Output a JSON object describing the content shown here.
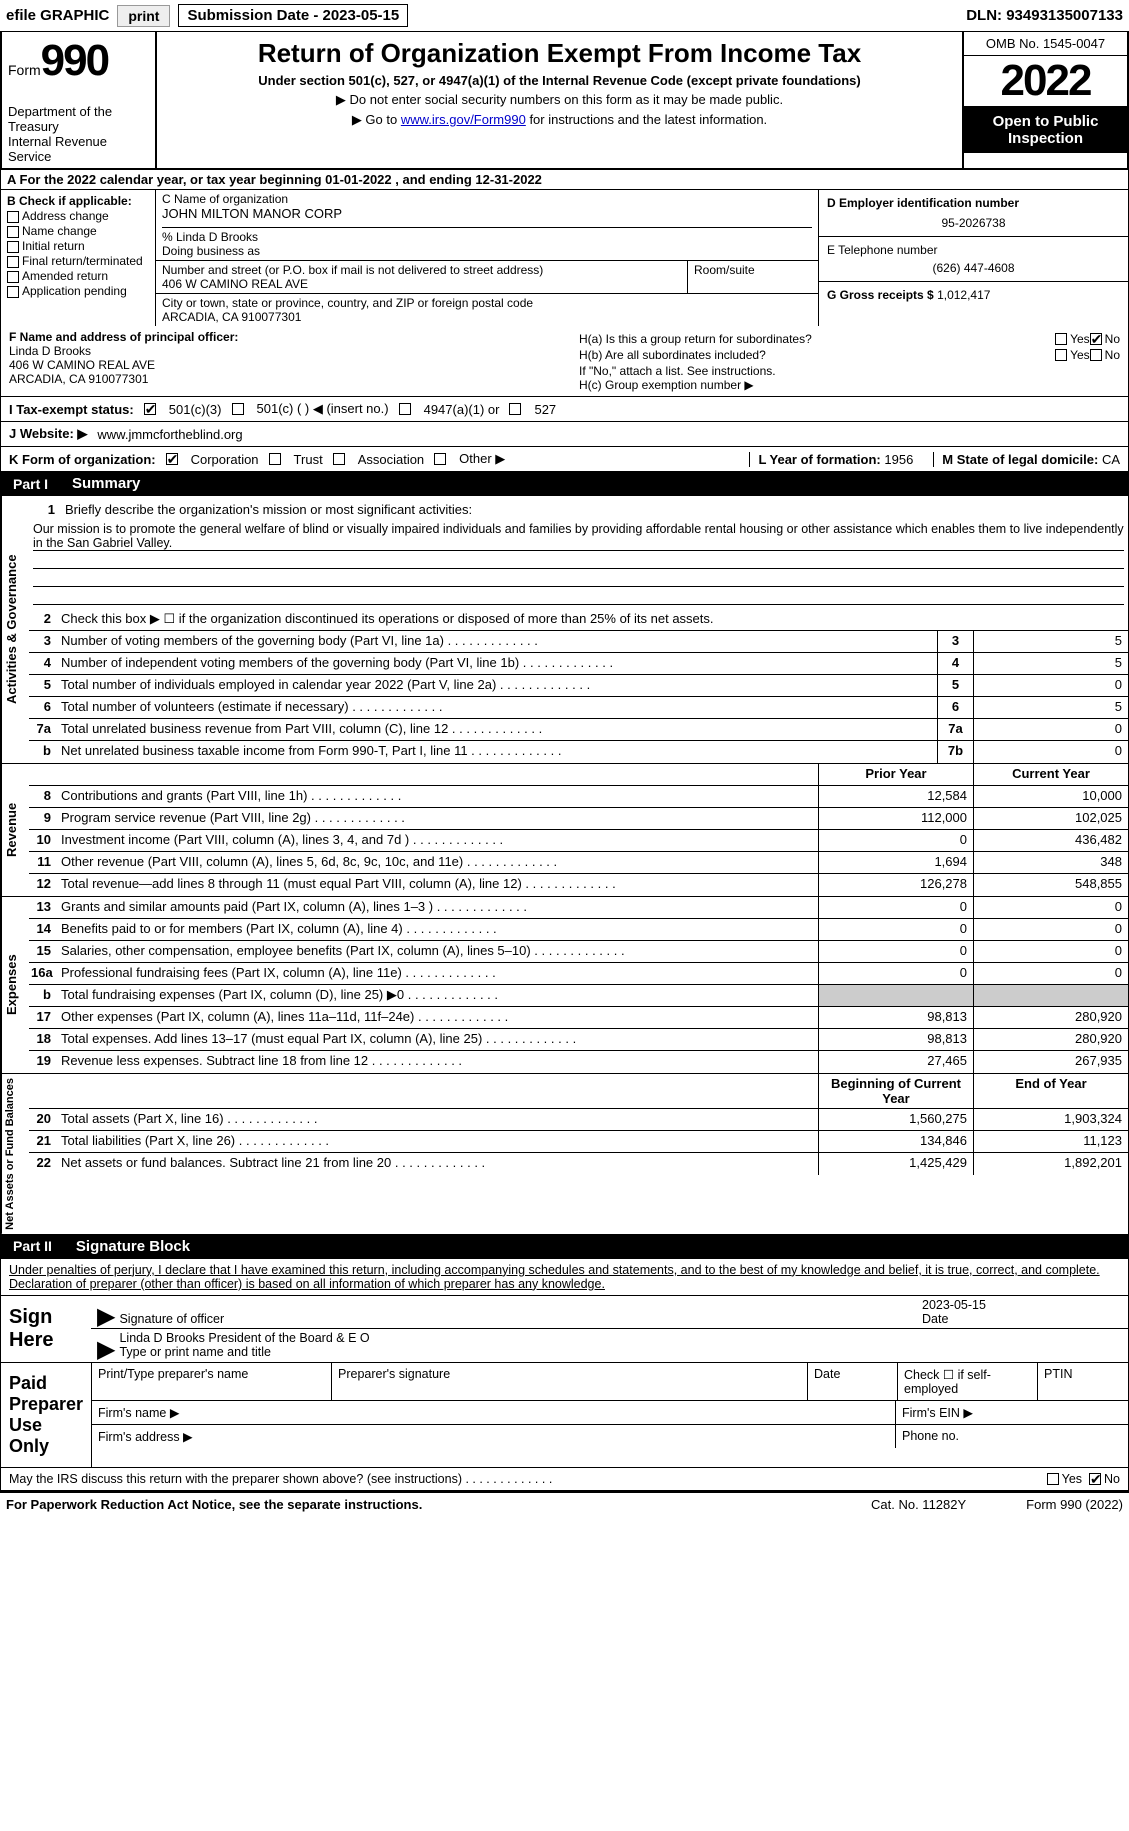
{
  "topbar": {
    "efile_label": "efile GRAPHIC",
    "print_btn": "print",
    "submission_label": "Submission Date - 2023-05-15",
    "dln": "DLN: 93493135007133"
  },
  "header": {
    "form_word": "Form",
    "form_number": "990",
    "dept": "Department of the Treasury",
    "irs": "Internal Revenue Service",
    "title": "Return of Organization Exempt From Income Tax",
    "subtitle": "Under section 501(c), 527, or 4947(a)(1) of the Internal Revenue Code (except private foundations)",
    "note1": "▶ Do not enter social security numbers on this form as it may be made public.",
    "note2_pre": "▶ Go to ",
    "note2_link": "www.irs.gov/Form990",
    "note2_post": " for instructions and the latest information.",
    "omb": "OMB No. 1545-0047",
    "year": "2022",
    "open": "Open to Public Inspection"
  },
  "section_a": "A For the 2022 calendar year, or tax year beginning 01-01-2022   , and ending 12-31-2022",
  "box_b": {
    "title": "B Check if applicable:",
    "items": [
      "Address change",
      "Name change",
      "Initial return",
      "Final return/terminated",
      "Amended return",
      "Application pending"
    ]
  },
  "box_c": {
    "name_label": "C Name of organization",
    "name": "JOHN MILTON MANOR CORP",
    "care_of": "% Linda D Brooks",
    "dba_label": "Doing business as",
    "addr_label": "Number and street (or P.O. box if mail is not delivered to street address)",
    "room_label": "Room/suite",
    "addr": "406 W CAMINO REAL AVE",
    "city_label": "City or town, state or province, country, and ZIP or foreign postal code",
    "city": "ARCADIA, CA  910077301"
  },
  "box_d": {
    "ein_label": "D Employer identification number",
    "ein": "95-2026738",
    "phone_label": "E Telephone number",
    "phone": "(626) 447-4608",
    "gross_label": "G Gross receipts $",
    "gross": "1,012,417"
  },
  "box_f": {
    "label": "F Name and address of principal officer:",
    "name": "Linda D Brooks",
    "addr1": "406 W CAMINO REAL AVE",
    "addr2": "ARCADIA, CA  910077301"
  },
  "box_h": {
    "a_label": "H(a)  Is this a group return for subordinates?",
    "b_label": "H(b)  Are all subordinates included?",
    "b_note": "If \"No,\" attach a list. See instructions.",
    "c_label": "H(c)  Group exemption number ▶"
  },
  "tax_status": {
    "label": "I   Tax-exempt status:",
    "opts": [
      "501(c)(3)",
      "501(c) (  ) ◀ (insert no.)",
      "4947(a)(1) or",
      "527"
    ]
  },
  "website": {
    "label": "J   Website: ▶  ",
    "value": "www.jmmcfortheblind.org"
  },
  "k_row": {
    "label": "K Form of organization:",
    "opts": [
      "Corporation",
      "Trust",
      "Association",
      "Other ▶"
    ],
    "l_label": "L Year of formation: ",
    "l_val": "1956",
    "m_label": "M State of legal domicile: ",
    "m_val": "CA"
  },
  "parts": {
    "p1_label": "Part I",
    "p1_title": "Summary",
    "p2_label": "Part II",
    "p2_title": "Signature Block"
  },
  "vtabs": {
    "gov": "Activities & Governance",
    "rev": "Revenue",
    "exp": "Expenses",
    "net": "Net Assets or Fund Balances"
  },
  "summary": {
    "q1_label": "Briefly describe the organization's mission or most significant activities:",
    "mission": "Our mission is to promote the general welfare of blind or visually impaired individuals and families by providing affordable rental housing or other assistance which enables them to live independently in the San Gabriel Valley.",
    "q2": "Check this box ▶ ☐  if the organization discontinued its operations or disposed of more than 25% of its net assets.",
    "rows_gov": [
      {
        "n": "3",
        "d": "Number of voting members of the governing body (Part VI, line 1a)",
        "box": "3",
        "v": "5"
      },
      {
        "n": "4",
        "d": "Number of independent voting members of the governing body (Part VI, line 1b)",
        "box": "4",
        "v": "5"
      },
      {
        "n": "5",
        "d": "Total number of individuals employed in calendar year 2022 (Part V, line 2a)",
        "box": "5",
        "v": "0"
      },
      {
        "n": "6",
        "d": "Total number of volunteers (estimate if necessary)",
        "box": "6",
        "v": "5"
      },
      {
        "n": "7a",
        "d": "Total unrelated business revenue from Part VIII, column (C), line 12",
        "box": "7a",
        "v": "0"
      },
      {
        "n": "b",
        "d": "Net unrelated business taxable income from Form 990-T, Part I, line 11",
        "box": "7b",
        "v": "0"
      }
    ],
    "col_prior": "Prior Year",
    "col_current": "Current Year",
    "rows_rev": [
      {
        "n": "8",
        "d": "Contributions and grants (Part VIII, line 1h)",
        "p": "12,584",
        "c": "10,000"
      },
      {
        "n": "9",
        "d": "Program service revenue (Part VIII, line 2g)",
        "p": "112,000",
        "c": "102,025"
      },
      {
        "n": "10",
        "d": "Investment income (Part VIII, column (A), lines 3, 4, and 7d )",
        "p": "0",
        "c": "436,482"
      },
      {
        "n": "11",
        "d": "Other revenue (Part VIII, column (A), lines 5, 6d, 8c, 9c, 10c, and 11e)",
        "p": "1,694",
        "c": "348"
      },
      {
        "n": "12",
        "d": "Total revenue—add lines 8 through 11 (must equal Part VIII, column (A), line 12)",
        "p": "126,278",
        "c": "548,855"
      }
    ],
    "rows_exp": [
      {
        "n": "13",
        "d": "Grants and similar amounts paid (Part IX, column (A), lines 1–3 )",
        "p": "0",
        "c": "0"
      },
      {
        "n": "14",
        "d": "Benefits paid to or for members (Part IX, column (A), line 4)",
        "p": "0",
        "c": "0"
      },
      {
        "n": "15",
        "d": "Salaries, other compensation, employee benefits (Part IX, column (A), lines 5–10)",
        "p": "0",
        "c": "0"
      },
      {
        "n": "16a",
        "d": "Professional fundraising fees (Part IX, column (A), line 11e)",
        "p": "0",
        "c": "0"
      },
      {
        "n": "b",
        "d": "Total fundraising expenses (Part IX, column (D), line 25) ▶0",
        "p": "",
        "c": "",
        "shade": true
      },
      {
        "n": "17",
        "d": "Other expenses (Part IX, column (A), lines 11a–11d, 11f–24e)",
        "p": "98,813",
        "c": "280,920"
      },
      {
        "n": "18",
        "d": "Total expenses. Add lines 13–17 (must equal Part IX, column (A), line 25)",
        "p": "98,813",
        "c": "280,920"
      },
      {
        "n": "19",
        "d": "Revenue less expenses. Subtract line 18 from line 12",
        "p": "27,465",
        "c": "267,935"
      }
    ],
    "col_begin": "Beginning of Current Year",
    "col_end": "End of Year",
    "rows_net": [
      {
        "n": "20",
        "d": "Total assets (Part X, line 16)",
        "p": "1,560,275",
        "c": "1,903,324"
      },
      {
        "n": "21",
        "d": "Total liabilities (Part X, line 26)",
        "p": "134,846",
        "c": "11,123"
      },
      {
        "n": "22",
        "d": "Net assets or fund balances. Subtract line 21 from line 20",
        "p": "1,425,429",
        "c": "1,892,201"
      }
    ]
  },
  "sig": {
    "declare": "Under penalties of perjury, I declare that I have examined this return, including accompanying schedules and statements, and to the best of my knowledge and belief, it is true, correct, and complete. Declaration of preparer (other than officer) is based on all information of which preparer has any knowledge.",
    "sign_here": "Sign Here",
    "officer_sig": "Signature of officer",
    "date_label": "Date",
    "date_val": "2023-05-15",
    "officer_name": "Linda D Brooks  President of the Board & E O",
    "officer_name_label": "Type or print name and title",
    "paid": "Paid Preparer Use Only",
    "p_name": "Print/Type preparer's name",
    "p_sig": "Preparer's signature",
    "p_date": "Date",
    "p_check": "Check ☐ if self-employed",
    "ptin": "PTIN",
    "firm_name": "Firm's name   ▶",
    "firm_ein": "Firm's EIN ▶",
    "firm_addr": "Firm's address ▶",
    "phone": "Phone no.",
    "discuss": "May the IRS discuss this return with the preparer shown above? (see instructions)"
  },
  "footer": {
    "left": "For Paperwork Reduction Act Notice, see the separate instructions.",
    "mid": "Cat. No. 11282Y",
    "right": "Form 990 (2022)"
  },
  "yes": "Yes",
  "no": "No"
}
